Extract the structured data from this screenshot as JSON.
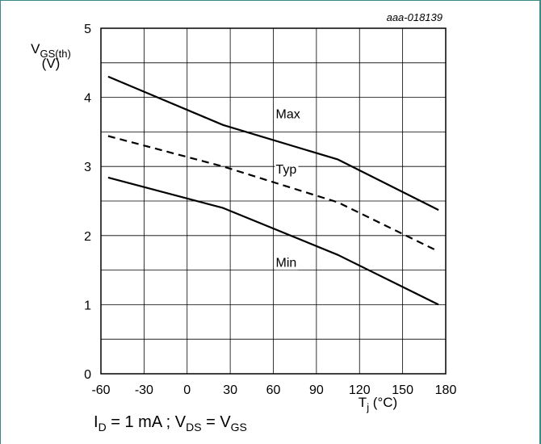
{
  "chart_data": {
    "type": "line",
    "figure_id": "aaa-018139",
    "ylabel": {
      "main": "V",
      "sub": "GS(th)",
      "unit": "(V)"
    },
    "xlabel": {
      "main": "T",
      "sub": "j",
      "unit": " (°C)"
    },
    "xlim": [
      -60,
      180
    ],
    "ylim": [
      0,
      5
    ],
    "xticks": [
      -60,
      -30,
      0,
      30,
      60,
      90,
      120,
      150,
      180
    ],
    "yticks": [
      0,
      1,
      2,
      3,
      4,
      5
    ],
    "x_gridlines": [
      -60,
      -30,
      0,
      30,
      60,
      90,
      120,
      150,
      180
    ],
    "y_gridlines": [
      0,
      0.5,
      1,
      1.5,
      2,
      2.5,
      3,
      3.5,
      4,
      4.5,
      5
    ],
    "grid": true,
    "series": [
      {
        "name": "Max",
        "style": "solid",
        "x": [
          -55,
          25,
          105,
          175
        ],
        "y": [
          4.3,
          3.6,
          3.1,
          2.37
        ],
        "label_at": [
          60,
          3.7
        ]
      },
      {
        "name": "Typ",
        "style": "dashed",
        "x": [
          -55,
          25,
          105,
          175
        ],
        "y": [
          3.44,
          3.0,
          2.48,
          1.77
        ],
        "label_at": [
          60,
          2.9
        ]
      },
      {
        "name": "Min",
        "style": "solid",
        "x": [
          -55,
          25,
          105,
          175
        ],
        "y": [
          2.84,
          2.4,
          1.72,
          1.0
        ],
        "label_at": [
          60,
          1.55
        ]
      }
    ],
    "condition": {
      "p1": "I",
      "s1": "D",
      "p2": " = 1 mA ; V",
      "s2": "DS",
      "p3": " = V",
      "s3": "GS"
    }
  }
}
